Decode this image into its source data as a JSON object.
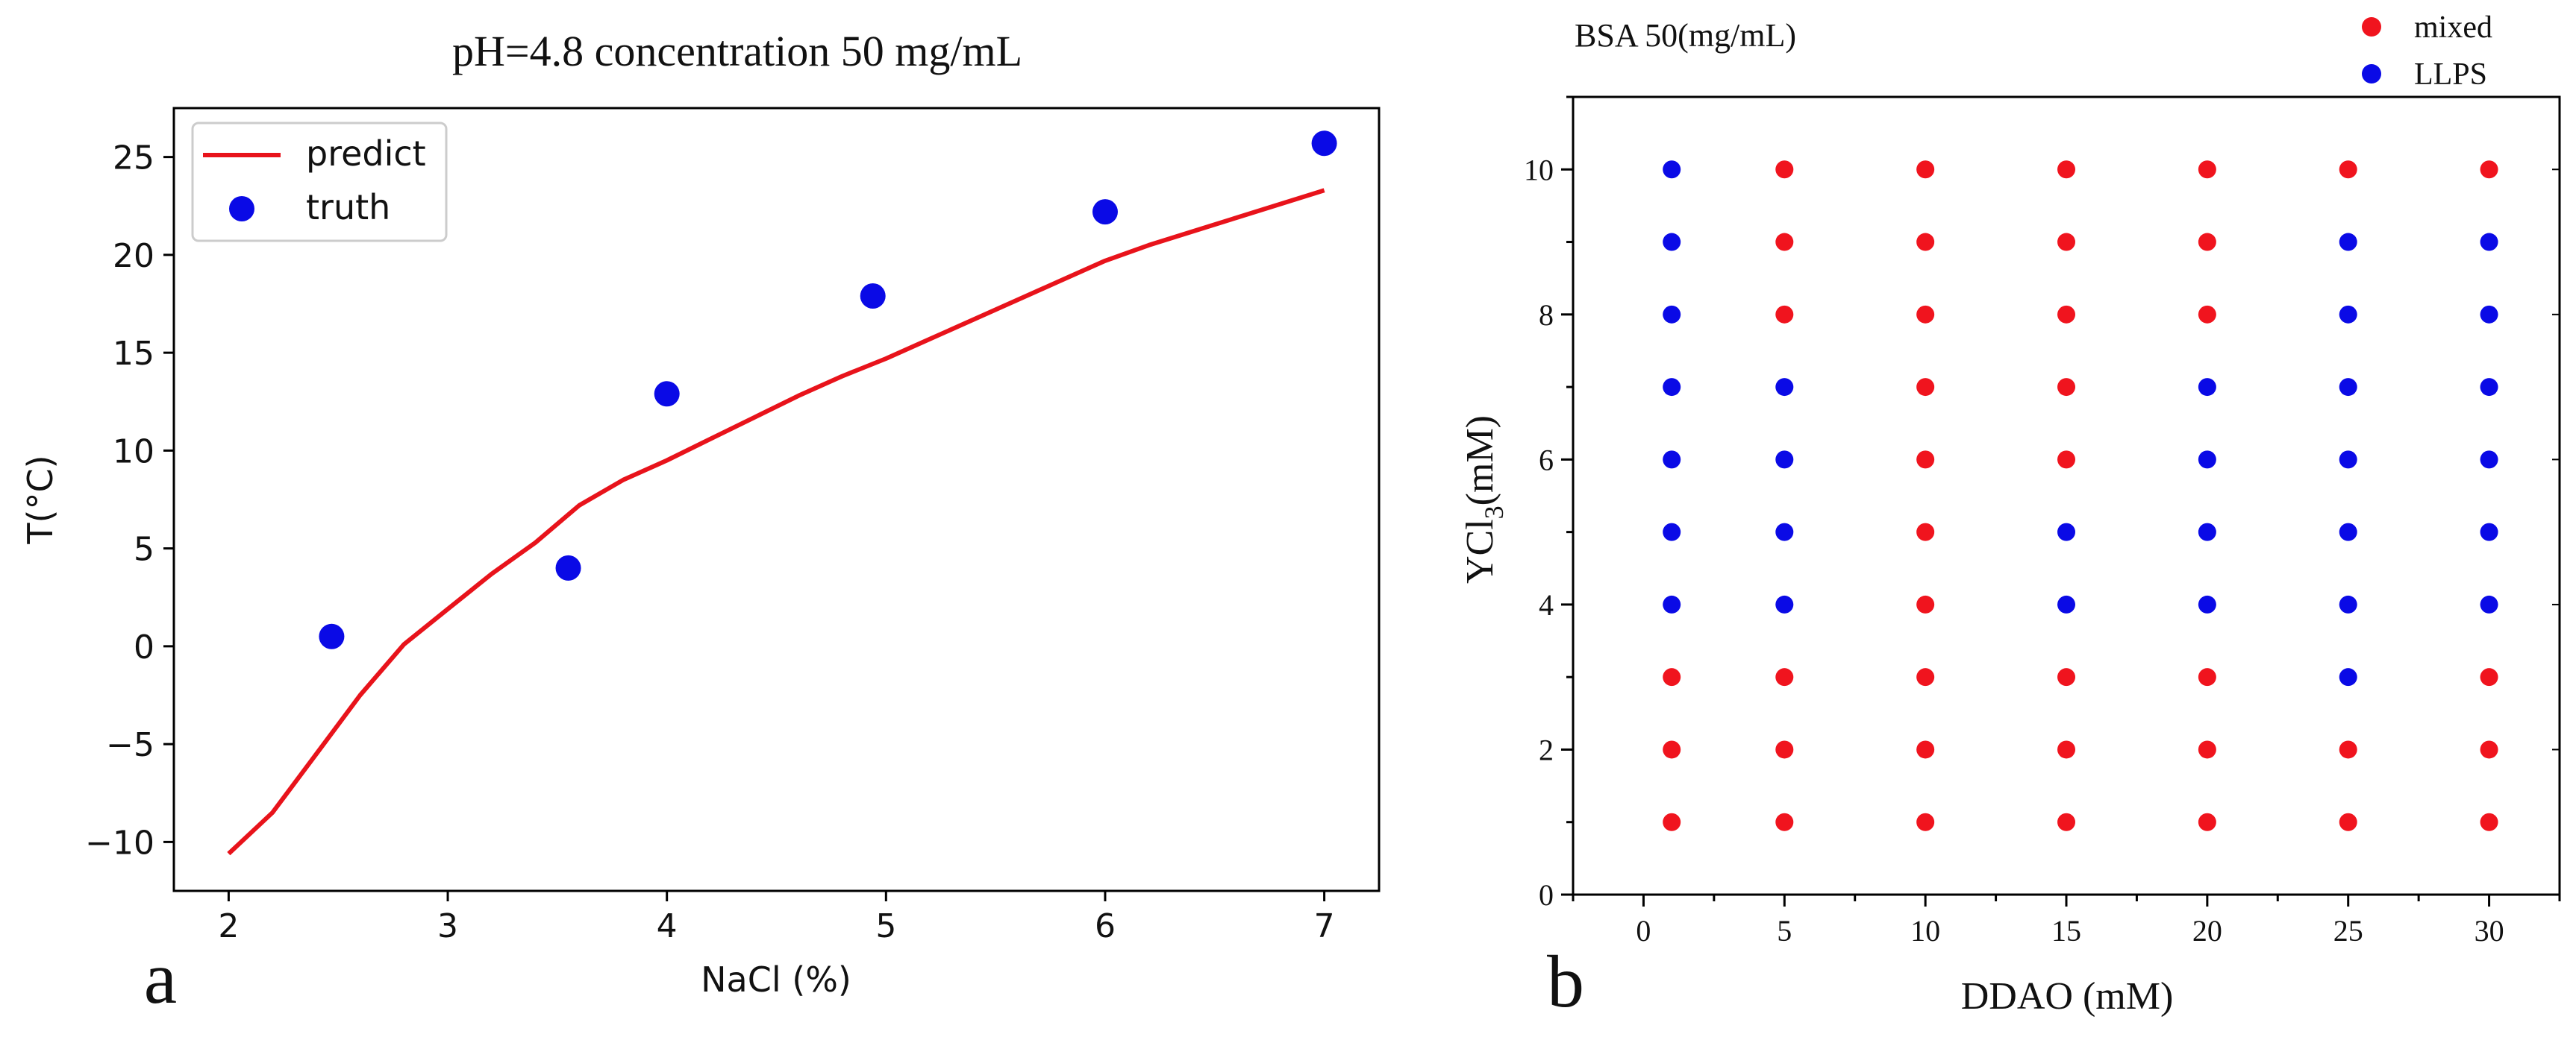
{
  "chart_data": [
    {
      "panel_label": "a",
      "type": "line",
      "title": "pH=4.8 concentration 50 mg/mL",
      "xlabel": "NaCl (%)",
      "ylabel": "T(°C)",
      "xlim": [
        1.75,
        7.25
      ],
      "ylim": [
        -12.5,
        27.5
      ],
      "xticks": [
        2,
        3,
        4,
        5,
        6,
        7
      ],
      "xtick_labels": [
        "2",
        "3",
        "4",
        "5",
        "6",
        "7"
      ],
      "yticks": [
        -10,
        -5,
        0,
        5,
        10,
        15,
        20,
        25
      ],
      "ytick_labels": [
        "−10",
        "−5",
        "0",
        "5",
        "10",
        "15",
        "20",
        "25"
      ],
      "legend_position": "top-left",
      "series": [
        {
          "name": "predict",
          "kind": "line",
          "color": "#e8131b",
          "x": [
            2.0,
            2.2,
            2.4,
            2.6,
            2.8,
            3.0,
            3.2,
            3.4,
            3.6,
            3.8,
            4.0,
            4.2,
            4.4,
            4.6,
            4.8,
            5.0,
            5.2,
            5.4,
            5.6,
            5.8,
            6.0,
            6.2,
            6.4,
            6.6,
            6.8,
            7.0
          ],
          "y": [
            -10.6,
            -8.5,
            -5.5,
            -2.5,
            0.1,
            1.9,
            3.7,
            5.3,
            7.2,
            8.5,
            9.5,
            10.6,
            11.7,
            12.8,
            13.8,
            14.7,
            15.7,
            16.7,
            17.7,
            18.7,
            19.7,
            20.5,
            21.2,
            21.9,
            22.6,
            23.3
          ]
        },
        {
          "name": "truth",
          "kind": "scatter",
          "color": "#0a0ae6",
          "x": [
            2.47,
            3.55,
            4.0,
            4.94,
            6.0,
            7.0
          ],
          "y": [
            0.5,
            4.0,
            12.9,
            17.9,
            22.2,
            25.7
          ]
        }
      ]
    },
    {
      "panel_label": "b",
      "type": "scatter",
      "title": "BSA 50(mg/mL)",
      "xlabel": "DDAO (mM)",
      "ylabel_main": "YCl",
      "ylabel_sub": "3",
      "ylabel_unit": "(mM)",
      "xlim": [
        -2.5,
        32.5
      ],
      "ylim": [
        0,
        11
      ],
      "xticks": [
        0,
        5,
        10,
        15,
        20,
        25,
        30
      ],
      "xtick_labels": [
        "0",
        "5",
        "10",
        "15",
        "20",
        "25",
        "30"
      ],
      "yticks": [
        0,
        2,
        4,
        6,
        8,
        10
      ],
      "ytick_labels": [
        "0",
        "2",
        "4",
        "6",
        "8",
        "10"
      ],
      "legend_position": "top-right (outside)",
      "columns_x": [
        1,
        5,
        10,
        15,
        20,
        25,
        30
      ],
      "rows_y": [
        1,
        2,
        3,
        4,
        5,
        6,
        7,
        8,
        9,
        10
      ],
      "series": [
        {
          "name": "mixed",
          "color": "#f0141e",
          "points": [
            [
              1,
              1
            ],
            [
              5,
              1
            ],
            [
              10,
              1
            ],
            [
              15,
              1
            ],
            [
              20,
              1
            ],
            [
              25,
              1
            ],
            [
              30,
              1
            ],
            [
              1,
              2
            ],
            [
              5,
              2
            ],
            [
              10,
              2
            ],
            [
              15,
              2
            ],
            [
              20,
              2
            ],
            [
              25,
              2
            ],
            [
              30,
              2
            ],
            [
              1,
              3
            ],
            [
              5,
              3
            ],
            [
              10,
              3
            ],
            [
              15,
              3
            ],
            [
              20,
              3
            ],
            [
              30,
              3
            ],
            [
              10,
              4
            ],
            [
              10,
              5
            ],
            [
              10,
              6
            ],
            [
              15,
              6
            ],
            [
              10,
              7
            ],
            [
              15,
              7
            ],
            [
              5,
              8
            ],
            [
              10,
              8
            ],
            [
              15,
              8
            ],
            [
              20,
              8
            ],
            [
              5,
              9
            ],
            [
              10,
              9
            ],
            [
              15,
              9
            ],
            [
              20,
              9
            ],
            [
              5,
              10
            ],
            [
              10,
              10
            ],
            [
              15,
              10
            ],
            [
              20,
              10
            ],
            [
              25,
              10
            ],
            [
              30,
              10
            ]
          ]
        },
        {
          "name": "LLPS",
          "color": "#0a0ae6",
          "points": [
            [
              25,
              3
            ],
            [
              1,
              4
            ],
            [
              5,
              4
            ],
            [
              15,
              4
            ],
            [
              20,
              4
            ],
            [
              25,
              4
            ],
            [
              30,
              4
            ],
            [
              1,
              5
            ],
            [
              5,
              5
            ],
            [
              15,
              5
            ],
            [
              20,
              5
            ],
            [
              25,
              5
            ],
            [
              30,
              5
            ],
            [
              1,
              6
            ],
            [
              5,
              6
            ],
            [
              20,
              6
            ],
            [
              25,
              6
            ],
            [
              30,
              6
            ],
            [
              1,
              7
            ],
            [
              5,
              7
            ],
            [
              20,
              7
            ],
            [
              25,
              7
            ],
            [
              30,
              7
            ],
            [
              1,
              8
            ],
            [
              25,
              8
            ],
            [
              30,
              8
            ],
            [
              1,
              9
            ],
            [
              25,
              9
            ],
            [
              30,
              9
            ],
            [
              1,
              10
            ]
          ]
        }
      ]
    }
  ]
}
